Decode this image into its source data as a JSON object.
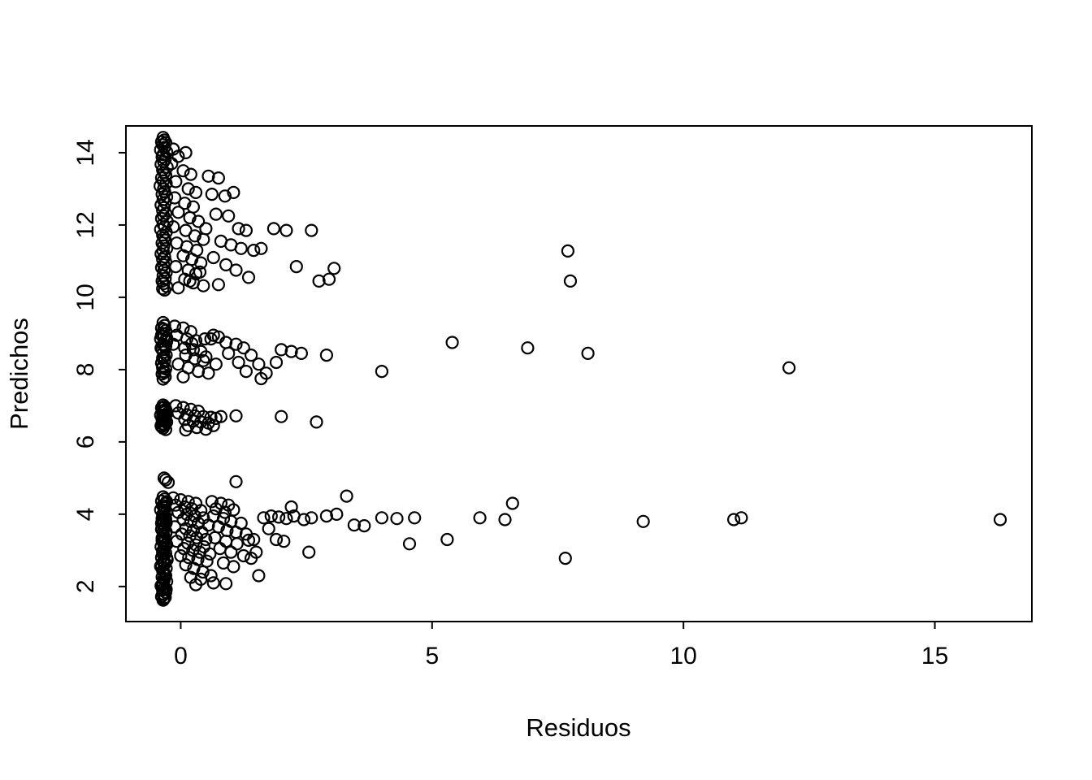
{
  "chart_data": {
    "type": "scatter",
    "title": "",
    "xlabel": "Residuos",
    "ylabel": "Predichos",
    "xlim": [
      -1.09,
      16.93
    ],
    "ylim": [
      1.03,
      14.74
    ],
    "x_ticks": [
      0,
      5,
      10,
      15
    ],
    "y_ticks": [
      2,
      4,
      6,
      8,
      10,
      12,
      14
    ],
    "grid": false,
    "legend": "none",
    "marker": {
      "shape": "open-circle",
      "color": "#000000",
      "radius_px": 7
    },
    "points": [
      [
        -0.35,
        14.42
      ],
      [
        -0.33,
        14.35
      ],
      [
        -0.38,
        14.3
      ],
      [
        -0.3,
        14.28
      ],
      [
        -0.36,
        14.22
      ],
      [
        -0.32,
        14.15
      ],
      [
        -0.4,
        14.08
      ],
      [
        -0.28,
        14.02
      ],
      [
        -0.35,
        13.95
      ],
      [
        -0.37,
        13.88
      ],
      [
        -0.31,
        13.82
      ],
      [
        -0.34,
        13.75
      ],
      [
        -0.39,
        13.68
      ],
      [
        -0.27,
        13.6
      ],
      [
        -0.36,
        13.52
      ],
      [
        -0.33,
        13.45
      ],
      [
        -0.3,
        13.38
      ],
      [
        -0.38,
        13.3
      ],
      [
        -0.35,
        13.22
      ],
      [
        -0.29,
        13.15
      ],
      [
        -0.41,
        13.08
      ],
      [
        -0.34,
        13.0
      ],
      [
        -0.32,
        12.92
      ],
      [
        -0.37,
        12.85
      ],
      [
        -0.28,
        12.78
      ],
      [
        -0.35,
        12.7
      ],
      [
        -0.31,
        12.62
      ],
      [
        -0.39,
        12.55
      ],
      [
        -0.33,
        12.48
      ],
      [
        -0.36,
        12.4
      ],
      [
        -0.3,
        12.32
      ],
      [
        -0.34,
        12.25
      ],
      [
        -0.38,
        12.18
      ],
      [
        -0.27,
        12.1
      ],
      [
        -0.35,
        12.02
      ],
      [
        -0.32,
        11.95
      ],
      [
        -0.4,
        11.88
      ],
      [
        -0.29,
        11.8
      ],
      [
        -0.36,
        11.72
      ],
      [
        -0.33,
        11.65
      ],
      [
        -0.31,
        11.58
      ],
      [
        -0.37,
        11.5
      ],
      [
        -0.34,
        11.42
      ],
      [
        -0.28,
        11.35
      ],
      [
        -0.35,
        11.28
      ],
      [
        -0.39,
        11.2
      ],
      [
        -0.32,
        11.12
      ],
      [
        -0.36,
        11.05
      ],
      [
        -0.3,
        10.98
      ],
      [
        -0.34,
        10.9
      ],
      [
        -0.38,
        10.82
      ],
      [
        -0.33,
        10.75
      ],
      [
        -0.29,
        10.68
      ],
      [
        -0.35,
        10.6
      ],
      [
        -0.31,
        10.52
      ],
      [
        -0.37,
        10.45
      ],
      [
        -0.34,
        10.38
      ],
      [
        -0.28,
        10.3
      ],
      [
        -0.36,
        10.24
      ],
      [
        -0.32,
        10.2
      ],
      [
        -0.15,
        14.1
      ],
      [
        -0.05,
        13.9
      ],
      [
        0.1,
        14.0
      ],
      [
        -0.18,
        13.7
      ],
      [
        0.05,
        13.5
      ],
      [
        0.2,
        13.4
      ],
      [
        -0.1,
        13.2
      ],
      [
        0.15,
        13.0
      ],
      [
        0.3,
        12.9
      ],
      [
        -0.12,
        12.75
      ],
      [
        0.08,
        12.6
      ],
      [
        0.25,
        12.5
      ],
      [
        -0.05,
        12.35
      ],
      [
        0.18,
        12.2
      ],
      [
        0.35,
        12.1
      ],
      [
        -0.15,
        11.95
      ],
      [
        0.1,
        11.85
      ],
      [
        0.28,
        11.7
      ],
      [
        0.45,
        11.6
      ],
      [
        -0.08,
        11.5
      ],
      [
        0.12,
        11.4
      ],
      [
        0.32,
        11.3
      ],
      [
        0.05,
        11.15
      ],
      [
        0.22,
        11.05
      ],
      [
        0.4,
        10.95
      ],
      [
        -0.1,
        10.85
      ],
      [
        0.15,
        10.75
      ],
      [
        0.3,
        10.65
      ],
      [
        0.08,
        10.5
      ],
      [
        0.25,
        10.4
      ],
      [
        0.45,
        10.32
      ],
      [
        -0.05,
        10.26
      ],
      [
        0.18,
        10.45
      ],
      [
        0.38,
        10.7
      ],
      [
        0.5,
        11.9
      ],
      [
        0.55,
        13.35
      ],
      [
        0.75,
        13.3
      ],
      [
        0.62,
        12.85
      ],
      [
        0.88,
        12.8
      ],
      [
        1.05,
        12.9
      ],
      [
        0.7,
        12.3
      ],
      [
        0.95,
        12.25
      ],
      [
        1.15,
        11.9
      ],
      [
        1.3,
        11.85
      ],
      [
        0.8,
        11.55
      ],
      [
        1.0,
        11.45
      ],
      [
        1.2,
        11.35
      ],
      [
        1.45,
        11.3
      ],
      [
        0.65,
        11.1
      ],
      [
        0.9,
        10.9
      ],
      [
        1.1,
        10.75
      ],
      [
        1.35,
        10.55
      ],
      [
        0.75,
        10.35
      ],
      [
        1.6,
        11.35
      ],
      [
        1.85,
        11.9
      ],
      [
        2.1,
        11.85
      ],
      [
        2.6,
        11.85
      ],
      [
        2.3,
        10.85
      ],
      [
        2.75,
        10.45
      ],
      [
        3.05,
        10.8
      ],
      [
        2.95,
        10.5
      ],
      [
        7.7,
        11.28
      ],
      [
        7.75,
        10.45
      ],
      [
        -0.35,
        9.3
      ],
      [
        -0.32,
        9.22
      ],
      [
        -0.38,
        9.15
      ],
      [
        -0.3,
        9.08
      ],
      [
        -0.36,
        9.0
      ],
      [
        -0.33,
        8.92
      ],
      [
        -0.4,
        8.85
      ],
      [
        -0.28,
        8.78
      ],
      [
        -0.35,
        8.7
      ],
      [
        -0.31,
        8.62
      ],
      [
        -0.37,
        8.55
      ],
      [
        -0.34,
        8.48
      ],
      [
        -0.29,
        8.4
      ],
      [
        -0.36,
        8.32
      ],
      [
        -0.32,
        8.25
      ],
      [
        -0.38,
        8.18
      ],
      [
        -0.35,
        8.1
      ],
      [
        -0.3,
        8.02
      ],
      [
        -0.34,
        7.95
      ],
      [
        -0.37,
        7.88
      ],
      [
        -0.31,
        7.8
      ],
      [
        -0.35,
        7.74
      ],
      [
        -0.28,
        8.88
      ],
      [
        -0.39,
        8.6
      ],
      [
        -0.33,
        8.35
      ],
      [
        -0.36,
        8.05
      ],
      [
        -0.3,
        8.65
      ],
      [
        -0.34,
        9.12
      ],
      [
        -0.38,
        8.95
      ],
      [
        -0.32,
        7.92
      ],
      [
        -0.12,
        9.2
      ],
      [
        0.05,
        9.15
      ],
      [
        0.2,
        9.05
      ],
      [
        -0.08,
        8.95
      ],
      [
        0.12,
        8.85
      ],
      [
        0.3,
        8.8
      ],
      [
        0.48,
        8.85
      ],
      [
        0.6,
        8.85
      ],
      [
        -0.15,
        8.7
      ],
      [
        0.08,
        8.6
      ],
      [
        0.25,
        8.55
      ],
      [
        0.4,
        8.5
      ],
      [
        0.1,
        8.4
      ],
      [
        0.28,
        8.3
      ],
      [
        0.45,
        8.25
      ],
      [
        -0.05,
        8.15
      ],
      [
        0.15,
        8.05
      ],
      [
        0.35,
        7.95
      ],
      [
        0.55,
        7.9
      ],
      [
        0.05,
        7.8
      ],
      [
        0.22,
        8.72
      ],
      [
        0.65,
        8.95
      ],
      [
        0.75,
        8.9
      ],
      [
        0.5,
        8.35
      ],
      [
        0.7,
        8.15
      ],
      [
        0.9,
        8.75
      ],
      [
        1.1,
        8.7
      ],
      [
        1.25,
        8.6
      ],
      [
        0.95,
        8.45
      ],
      [
        1.4,
        8.4
      ],
      [
        1.15,
        8.2
      ],
      [
        1.55,
        8.15
      ],
      [
        1.3,
        7.95
      ],
      [
        1.7,
        7.9
      ],
      [
        2.0,
        8.55
      ],
      [
        2.2,
        8.5
      ],
      [
        1.9,
        8.2
      ],
      [
        2.4,
        8.45
      ],
      [
        2.9,
        8.4
      ],
      [
        1.6,
        7.75
      ],
      [
        4.0,
        7.95
      ],
      [
        5.4,
        8.75
      ],
      [
        6.9,
        8.6
      ],
      [
        8.1,
        8.45
      ],
      [
        12.1,
        8.05
      ],
      [
        -0.35,
        7.02
      ],
      [
        -0.32,
        6.98
      ],
      [
        -0.38,
        6.94
      ],
      [
        -0.3,
        6.9
      ],
      [
        -0.36,
        6.86
      ],
      [
        -0.33,
        6.82
      ],
      [
        -0.28,
        6.78
      ],
      [
        -0.4,
        6.74
      ],
      [
        -0.35,
        6.7
      ],
      [
        -0.31,
        6.66
      ],
      [
        -0.37,
        6.62
      ],
      [
        -0.34,
        6.58
      ],
      [
        -0.29,
        6.54
      ],
      [
        -0.36,
        6.5
      ],
      [
        -0.32,
        6.46
      ],
      [
        -0.38,
        6.42
      ],
      [
        -0.35,
        6.38
      ],
      [
        -0.3,
        6.34
      ],
      [
        -0.34,
        6.95
      ],
      [
        -0.37,
        6.85
      ],
      [
        -0.31,
        6.75
      ],
      [
        -0.35,
        6.65
      ],
      [
        -0.28,
        6.55
      ],
      [
        -0.39,
        6.45
      ],
      [
        -0.33,
        6.88
      ],
      [
        -0.36,
        6.72
      ],
      [
        -0.3,
        6.6
      ],
      [
        -0.34,
        6.48
      ],
      [
        -0.1,
        7.0
      ],
      [
        0.05,
        6.95
      ],
      [
        0.2,
        6.9
      ],
      [
        0.35,
        6.85
      ],
      [
        -0.05,
        6.8
      ],
      [
        0.12,
        6.75
      ],
      [
        0.28,
        6.72
      ],
      [
        0.45,
        6.7
      ],
      [
        0.6,
        6.68
      ],
      [
        0.08,
        6.62
      ],
      [
        0.25,
        6.58
      ],
      [
        0.4,
        6.55
      ],
      [
        0.55,
        6.52
      ],
      [
        0.15,
        6.45
      ],
      [
        0.32,
        6.4
      ],
      [
        0.5,
        6.35
      ],
      [
        0.7,
        6.65
      ],
      [
        0.8,
        6.7
      ],
      [
        0.1,
        6.33
      ],
      [
        0.65,
        6.45
      ],
      [
        1.1,
        6.72
      ],
      [
        2.0,
        6.7
      ],
      [
        2.7,
        6.55
      ],
      [
        -0.3,
        4.95
      ],
      [
        -0.25,
        4.88
      ],
      [
        -0.33,
        5.0
      ],
      [
        1.1,
        4.9
      ],
      [
        -0.35,
        4.48
      ],
      [
        -0.32,
        4.42
      ],
      [
        -0.38,
        4.36
      ],
      [
        -0.3,
        4.3
      ],
      [
        -0.36,
        4.24
      ],
      [
        -0.33,
        4.18
      ],
      [
        -0.4,
        4.12
      ],
      [
        -0.28,
        4.06
      ],
      [
        -0.35,
        4.0
      ],
      [
        -0.31,
        3.94
      ],
      [
        -0.37,
        3.88
      ],
      [
        -0.34,
        3.82
      ],
      [
        -0.29,
        3.76
      ],
      [
        -0.36,
        3.7
      ],
      [
        -0.32,
        3.64
      ],
      [
        -0.38,
        3.58
      ],
      [
        -0.35,
        3.52
      ],
      [
        -0.3,
        3.46
      ],
      [
        -0.34,
        3.4
      ],
      [
        -0.37,
        3.34
      ],
      [
        -0.31,
        3.28
      ],
      [
        -0.35,
        3.22
      ],
      [
        -0.28,
        3.16
      ],
      [
        -0.39,
        3.1
      ],
      [
        -0.33,
        3.04
      ],
      [
        -0.36,
        2.98
      ],
      [
        -0.3,
        2.92
      ],
      [
        -0.34,
        2.86
      ],
      [
        -0.38,
        2.8
      ],
      [
        -0.27,
        2.74
      ],
      [
        -0.35,
        2.68
      ],
      [
        -0.32,
        2.62
      ],
      [
        -0.4,
        2.56
      ],
      [
        -0.29,
        2.5
      ],
      [
        -0.36,
        2.44
      ],
      [
        -0.33,
        2.38
      ],
      [
        -0.31,
        2.32
      ],
      [
        -0.37,
        2.26
      ],
      [
        -0.34,
        2.2
      ],
      [
        -0.28,
        2.14
      ],
      [
        -0.35,
        2.08
      ],
      [
        -0.39,
        2.02
      ],
      [
        -0.32,
        1.96
      ],
      [
        -0.36,
        1.9
      ],
      [
        -0.3,
        1.84
      ],
      [
        -0.34,
        1.78
      ],
      [
        -0.38,
        1.72
      ],
      [
        -0.33,
        1.66
      ],
      [
        -0.35,
        1.62
      ],
      [
        -0.31,
        1.7
      ],
      [
        -0.36,
        1.8
      ],
      [
        -0.29,
        1.92
      ],
      [
        -0.37,
        2.05
      ],
      [
        -0.33,
        2.18
      ],
      [
        -0.3,
        2.3
      ],
      [
        -0.35,
        2.42
      ],
      [
        -0.38,
        2.55
      ],
      [
        -0.32,
        2.67
      ],
      [
        -0.28,
        2.79
      ],
      [
        -0.36,
        2.91
      ],
      [
        -0.34,
        3.03
      ],
      [
        -0.31,
        3.15
      ],
      [
        -0.37,
        3.27
      ],
      [
        -0.35,
        3.39
      ],
      [
        -0.29,
        3.51
      ],
      [
        -0.33,
        3.63
      ],
      [
        -0.38,
        3.75
      ],
      [
        -0.3,
        3.87
      ],
      [
        -0.36,
        3.99
      ],
      [
        -0.32,
        4.11
      ],
      [
        -0.34,
        4.23
      ],
      [
        -0.28,
        4.35
      ],
      [
        -0.15,
        4.45
      ],
      [
        0.0,
        4.4
      ],
      [
        0.15,
        4.35
      ],
      [
        0.3,
        4.3
      ],
      [
        -0.1,
        4.25
      ],
      [
        0.08,
        4.2
      ],
      [
        0.22,
        4.15
      ],
      [
        0.4,
        4.1
      ],
      [
        -0.05,
        4.05
      ],
      [
        0.12,
        4.0
      ],
      [
        0.28,
        3.95
      ],
      [
        0.45,
        3.9
      ],
      [
        0.05,
        3.85
      ],
      [
        0.2,
        3.8
      ],
      [
        0.35,
        3.75
      ],
      [
        0.55,
        3.7
      ],
      [
        -0.12,
        3.65
      ],
      [
        0.1,
        3.6
      ],
      [
        0.25,
        3.55
      ],
      [
        0.42,
        3.5
      ],
      [
        0.02,
        3.45
      ],
      [
        0.18,
        3.4
      ],
      [
        0.32,
        3.35
      ],
      [
        0.5,
        3.3
      ],
      [
        -0.08,
        3.25
      ],
      [
        0.14,
        3.2
      ],
      [
        0.3,
        3.15
      ],
      [
        0.46,
        3.1
      ],
      [
        0.06,
        3.05
      ],
      [
        0.24,
        3.0
      ],
      [
        0.38,
        2.95
      ],
      [
        0.58,
        2.9
      ],
      [
        0.0,
        2.85
      ],
      [
        0.16,
        2.8
      ],
      [
        0.34,
        2.75
      ],
      [
        0.52,
        2.7
      ],
      [
        0.1,
        2.6
      ],
      [
        0.26,
        2.5
      ],
      [
        0.44,
        2.4
      ],
      [
        0.2,
        2.25
      ],
      [
        0.62,
        4.35
      ],
      [
        0.8,
        4.3
      ],
      [
        0.95,
        4.25
      ],
      [
        0.7,
        4.15
      ],
      [
        0.88,
        4.05
      ],
      [
        1.05,
        4.12
      ],
      [
        0.65,
        3.95
      ],
      [
        0.85,
        3.88
      ],
      [
        1.0,
        3.8
      ],
      [
        1.2,
        3.75
      ],
      [
        0.75,
        3.65
      ],
      [
        0.92,
        3.55
      ],
      [
        1.1,
        3.5
      ],
      [
        1.3,
        3.45
      ],
      [
        0.68,
        3.35
      ],
      [
        0.9,
        3.25
      ],
      [
        1.12,
        3.18
      ],
      [
        1.35,
        3.28
      ],
      [
        0.78,
        3.05
      ],
      [
        1.0,
        2.95
      ],
      [
        1.25,
        2.85
      ],
      [
        0.85,
        2.65
      ],
      [
        1.05,
        2.55
      ],
      [
        1.45,
        3.3
      ],
      [
        1.4,
        2.78
      ],
      [
        0.6,
        2.3
      ],
      [
        1.55,
        2.3
      ],
      [
        0.4,
        2.2
      ],
      [
        1.5,
        2.95
      ],
      [
        0.3,
        2.05
      ],
      [
        0.65,
        2.1
      ],
      [
        0.9,
        2.08
      ],
      [
        1.65,
        3.9
      ],
      [
        1.8,
        3.95
      ],
      [
        1.95,
        3.92
      ],
      [
        2.1,
        3.88
      ],
      [
        1.75,
        3.6
      ],
      [
        2.25,
        3.95
      ],
      [
        2.45,
        3.85
      ],
      [
        2.6,
        3.9
      ],
      [
        2.9,
        3.95
      ],
      [
        3.1,
        4.0
      ],
      [
        3.45,
        3.7
      ],
      [
        2.55,
        2.95
      ],
      [
        1.9,
        3.3
      ],
      [
        2.05,
        3.25
      ],
      [
        3.3,
        4.5
      ],
      [
        2.2,
        4.2
      ],
      [
        3.65,
        3.68
      ],
      [
        4.0,
        3.9
      ],
      [
        4.3,
        3.88
      ],
      [
        4.55,
        3.18
      ],
      [
        4.65,
        3.9
      ],
      [
        5.3,
        3.3
      ],
      [
        5.95,
        3.9
      ],
      [
        6.45,
        3.85
      ],
      [
        6.6,
        4.3
      ],
      [
        7.65,
        2.78
      ],
      [
        9.2,
        3.8
      ],
      [
        11.0,
        3.85
      ],
      [
        11.15,
        3.9
      ],
      [
        16.3,
        3.85
      ]
    ]
  }
}
